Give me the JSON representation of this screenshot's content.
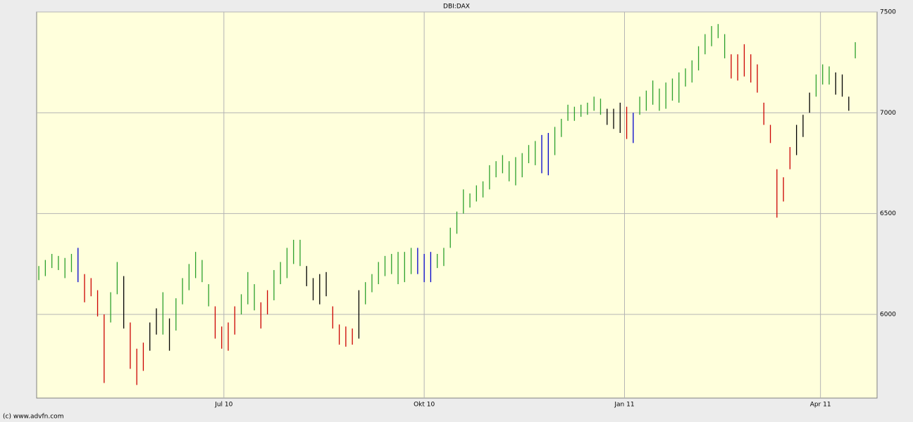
{
  "chart_data": {
    "type": "hlbar",
    "title": "DBI:DAX",
    "footer": "(c) www.advfn.com",
    "xlim": [
      0,
      386
    ],
    "xticks": [
      {
        "value": 86,
        "label": "Jul 10"
      },
      {
        "value": 178,
        "label": "Okt 10"
      },
      {
        "value": 270,
        "label": "Jan 11"
      },
      {
        "value": 360,
        "label": "Apr 11"
      }
    ],
    "ylim": [
      5585,
      7500
    ],
    "yticks": [
      6000,
      6500,
      7000,
      7500
    ],
    "grid": true,
    "x": [
      1,
      4,
      7,
      10,
      13,
      16,
      19,
      22,
      25,
      28,
      31,
      34,
      37,
      40,
      43,
      46,
      49,
      52,
      55,
      58,
      61,
      64,
      67,
      70,
      73,
      76,
      79,
      82,
      85,
      88,
      91,
      94,
      97,
      100,
      103,
      106,
      109,
      112,
      115,
      118,
      121,
      124,
      127,
      130,
      133,
      136,
      139,
      142,
      145,
      148,
      151,
      154,
      157,
      160,
      163,
      166,
      169,
      172,
      175,
      178,
      181,
      184,
      187,
      190,
      193,
      196,
      199,
      202,
      205,
      208,
      211,
      214,
      217,
      220,
      223,
      226,
      229,
      232,
      235,
      238,
      241,
      244,
      247,
      250,
      253,
      256,
      259,
      262,
      265,
      268,
      271,
      274,
      277,
      280,
      283,
      286,
      289,
      292,
      295,
      298,
      301,
      304,
      307,
      310,
      313,
      316,
      319,
      322,
      325,
      328,
      331,
      334,
      337,
      340,
      343,
      346,
      349,
      352,
      355,
      358,
      361,
      364,
      367,
      370,
      373,
      376
    ],
    "high": [
      6240,
      6270,
      6300,
      6290,
      6280,
      6300,
      6330,
      6200,
      6180,
      6120,
      6000,
      6110,
      6260,
      6190,
      5960,
      5830,
      5860,
      5960,
      6030,
      6110,
      5980,
      6080,
      6180,
      6250,
      6310,
      6270,
      6150,
      6040,
      5940,
      5960,
      6040,
      6100,
      6210,
      6150,
      6060,
      6120,
      6220,
      6260,
      6330,
      6370,
      6370,
      6240,
      6180,
      6200,
      6210,
      6040,
      5950,
      5940,
      5930,
      6120,
      6160,
      6200,
      6260,
      6290,
      6300,
      6310,
      6310,
      6330,
      6330,
      6300,
      6310,
      6300,
      6330,
      6430,
      6510,
      6620,
      6600,
      6640,
      6660,
      6740,
      6760,
      6790,
      6760,
      6780,
      6800,
      6840,
      6860,
      6890,
      6900,
      6930,
      6970,
      7040,
      7030,
      7040,
      7050,
      7080,
      7070,
      7020,
      7020,
      7050,
      7030,
      7000,
      7080,
      7110,
      7160,
      7120,
      7150,
      7170,
      7200,
      7220,
      7260,
      7330,
      7390,
      7430,
      7440,
      7390,
      7290,
      7290,
      7340,
      7290,
      7240,
      7050,
      6940,
      6720,
      6680,
      6830,
      6940,
      6990,
      7100,
      7190,
      7240,
      7230,
      7200,
      7190,
      7080,
      7350
    ],
    "low": [
      6170,
      6190,
      6230,
      6220,
      6180,
      6210,
      6160,
      6060,
      6090,
      5990,
      5660,
      5960,
      6100,
      5930,
      5730,
      5650,
      5720,
      5820,
      5900,
      5900,
      5820,
      5920,
      6050,
      6120,
      6180,
      6160,
      6040,
      5880,
      5830,
      5820,
      5900,
      6000,
      6050,
      6020,
      5930,
      6000,
      6070,
      6150,
      6180,
      6250,
      6240,
      6140,
      6070,
      6050,
      6090,
      5930,
      5850,
      5840,
      5850,
      5880,
      6050,
      6110,
      6150,
      6190,
      6200,
      6150,
      6160,
      6200,
      6200,
      6160,
      6160,
      6230,
      6240,
      6330,
      6400,
      6500,
      6530,
      6560,
      6580,
      6620,
      6680,
      6700,
      6660,
      6640,
      6680,
      6750,
      6740,
      6700,
      6690,
      6790,
      6880,
      6960,
      6960,
      6980,
      6990,
      7010,
      6990,
      6940,
      6920,
      6900,
      6870,
      6850,
      6990,
      7010,
      7040,
      7010,
      7020,
      7060,
      7050,
      7130,
      7150,
      7210,
      7290,
      7330,
      7370,
      7270,
      7170,
      7160,
      7180,
      7150,
      7100,
      6940,
      6850,
      6480,
      6560,
      6720,
      6790,
      6880,
      7000,
      7080,
      7140,
      7140,
      7090,
      7080,
      7010,
      7270
    ],
    "bar_colors": [
      "#2ca02c",
      "#2ca02c",
      "#2ca02c",
      "#2ca02c",
      "#2ca02c",
      "#2ca02c",
      "#0000cc",
      "#cc0000",
      "#cc0000",
      "#cc0000",
      "#cc0000",
      "#2ca02c",
      "#2ca02c",
      "#000000",
      "#cc0000",
      "#cc0000",
      "#cc0000",
      "#000000",
      "#000000",
      "#2ca02c",
      "#000000",
      "#2ca02c",
      "#2ca02c",
      "#2ca02c",
      "#2ca02c",
      "#2ca02c",
      "#2ca02c",
      "#cc0000",
      "#cc0000",
      "#cc0000",
      "#cc0000",
      "#2ca02c",
      "#2ca02c",
      "#2ca02c",
      "#cc0000",
      "#cc0000",
      "#2ca02c",
      "#2ca02c",
      "#2ca02c",
      "#2ca02c",
      "#2ca02c",
      "#000000",
      "#000000",
      "#000000",
      "#000000",
      "#cc0000",
      "#cc0000",
      "#cc0000",
      "#cc0000",
      "#000000",
      "#2ca02c",
      "#2ca02c",
      "#2ca02c",
      "#2ca02c",
      "#2ca02c",
      "#2ca02c",
      "#2ca02c",
      "#2ca02c",
      "#0000cc",
      "#0000cc",
      "#0000cc",
      "#2ca02c",
      "#2ca02c",
      "#2ca02c",
      "#2ca02c",
      "#2ca02c",
      "#2ca02c",
      "#2ca02c",
      "#2ca02c",
      "#2ca02c",
      "#2ca02c",
      "#2ca02c",
      "#2ca02c",
      "#2ca02c",
      "#2ca02c",
      "#2ca02c",
      "#2ca02c",
      "#0000cc",
      "#0000cc",
      "#2ca02c",
      "#2ca02c",
      "#2ca02c",
      "#2ca02c",
      "#2ca02c",
      "#2ca02c",
      "#2ca02c",
      "#2ca02c",
      "#000000",
      "#000000",
      "#000000",
      "#cc0000",
      "#0000cc",
      "#2ca02c",
      "#2ca02c",
      "#2ca02c",
      "#2ca02c",
      "#2ca02c",
      "#2ca02c",
      "#2ca02c",
      "#2ca02c",
      "#2ca02c",
      "#2ca02c",
      "#2ca02c",
      "#2ca02c",
      "#2ca02c",
      "#2ca02c",
      "#cc0000",
      "#cc0000",
      "#cc0000",
      "#cc0000",
      "#cc0000",
      "#cc0000",
      "#cc0000",
      "#cc0000",
      "#cc0000",
      "#cc0000",
      "#000000",
      "#000000",
      "#000000",
      "#2ca02c",
      "#2ca02c",
      "#2ca02c",
      "#000000",
      "#000000",
      "#000000",
      "#2ca02c"
    ]
  }
}
